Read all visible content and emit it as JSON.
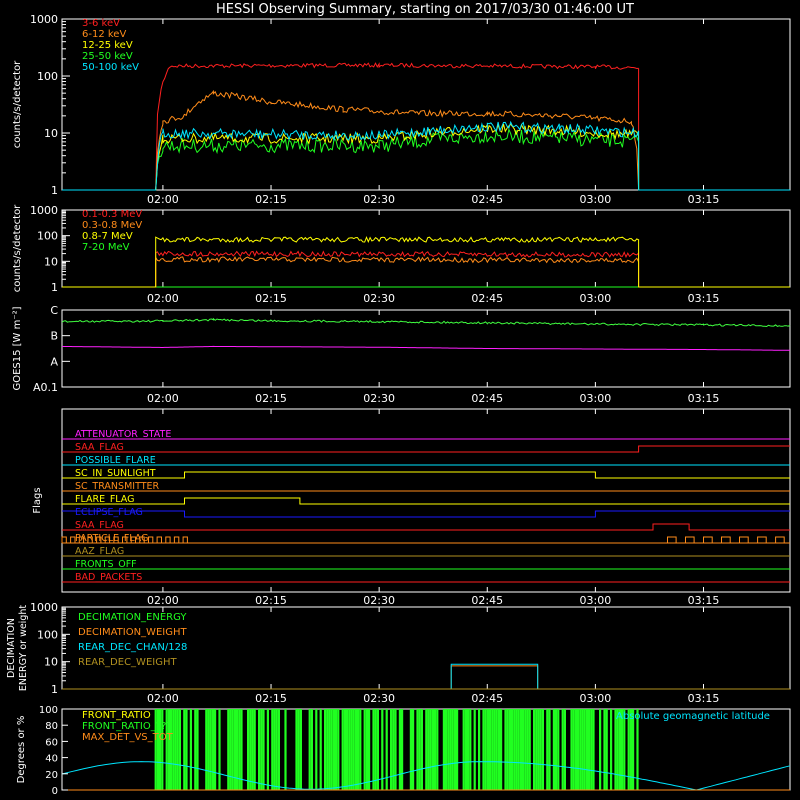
{
  "colors": {
    "bg": "#000000",
    "axis": "#ffffff",
    "red": "#ff2020",
    "orange": "#ff8c1a",
    "yellow": "#ffff00",
    "green": "#20ff20",
    "cyan": "#00e5ff",
    "magenta": "#ff20ff",
    "blue": "#1a1aff",
    "olive": "#b09020",
    "goes_green": "#40ff40"
  },
  "chart_data": [
    {
      "id": "xray",
      "type": "line",
      "title": "HESSI Observing Summary, starting on 2017/03/30 01:46:00 UT",
      "ylabel": "counts/s/detector",
      "yscale": "log",
      "ylim": [
        1,
        1000
      ],
      "ytick_labels": [
        "1",
        "10",
        "100",
        "1000"
      ],
      "ytick_values": [
        1,
        10,
        100,
        1000
      ],
      "xlim": [
        "01:46",
        "03:27"
      ],
      "xtick_labels": [
        "02:00",
        "02:15",
        "02:30",
        "02:45",
        "03:00",
        "03:15"
      ],
      "xtick_values": [
        "02:00",
        "02:15",
        "02:30",
        "02:45",
        "03:00",
        "03:15"
      ],
      "legend_position": "top-left",
      "series": [
        {
          "name": "3-6 keV",
          "color": "red",
          "x": [
            "01:46",
            "01:59",
            "02:01",
            "02:30",
            "03:00",
            "03:06",
            "03:06",
            "03:27"
          ],
          "y": [
            1,
            1,
            150,
            155,
            145,
            140,
            1,
            1
          ]
        },
        {
          "name": "6-12 keV",
          "color": "orange",
          "x": [
            "01:46",
            "01:59",
            "02:00",
            "02:03",
            "02:07",
            "02:15",
            "02:25",
            "02:35",
            "02:45",
            "02:55",
            "03:05",
            "03:06",
            "03:27"
          ],
          "y": [
            1,
            1,
            16,
            20,
            50,
            35,
            26,
            22,
            22,
            20,
            16,
            1,
            1
          ]
        },
        {
          "name": "12-25 keV",
          "color": "yellow",
          "x": [
            "01:46",
            "01:59",
            "02:00",
            "02:30",
            "02:45",
            "02:55",
            "03:06",
            "03:06",
            "03:27"
          ],
          "y": [
            1,
            1,
            8,
            8,
            12,
            11,
            9,
            1,
            1
          ]
        },
        {
          "name": "25-50 keV",
          "color": "green",
          "x": [
            "01:46",
            "01:59",
            "02:00",
            "02:30",
            "02:45",
            "02:55",
            "03:06",
            "03:06",
            "03:27"
          ],
          "y": [
            1,
            1,
            6,
            6,
            9,
            8,
            7,
            1,
            1
          ]
        },
        {
          "name": "50-100 keV",
          "color": "cyan",
          "x": [
            "01:46",
            "01:59",
            "02:00",
            "02:30",
            "02:45",
            "02:55",
            "03:06",
            "03:06",
            "03:27"
          ],
          "y": [
            1,
            1,
            10,
            9,
            13,
            12,
            10,
            1,
            1
          ]
        }
      ]
    },
    {
      "id": "gamma",
      "type": "line",
      "ylabel": "counts/s/detector",
      "yscale": "log",
      "ylim": [
        1,
        1000
      ],
      "ytick_labels": [
        "1",
        "10",
        "100",
        "1000"
      ],
      "ytick_values": [
        1,
        10,
        100,
        1000
      ],
      "xlim": [
        "01:46",
        "03:27"
      ],
      "xtick_labels": [
        "02:00",
        "02:15",
        "02:30",
        "02:45",
        "03:00",
        "03:15"
      ],
      "xtick_values": [
        "02:00",
        "02:15",
        "02:30",
        "02:45",
        "03:00",
        "03:15"
      ],
      "legend_position": "top-left",
      "series": [
        {
          "name": "0.1-0.3 MeV",
          "color": "red",
          "x": [
            "01:46",
            "01:59",
            "01:59",
            "03:06",
            "03:06",
            "03:27"
          ],
          "y": [
            1,
            1,
            20,
            18,
            1,
            1
          ]
        },
        {
          "name": "0.3-0.8 MeV",
          "color": "orange",
          "x": [
            "01:46",
            "01:59",
            "01:59",
            "03:06",
            "03:06",
            "03:27"
          ],
          "y": [
            1,
            1,
            12,
            11,
            1,
            1
          ]
        },
        {
          "name": "0.8-7 MeV",
          "color": "yellow",
          "x": [
            "01:46",
            "01:59",
            "01:59",
            "03:06",
            "03:06",
            "03:27"
          ],
          "y": [
            1,
            1,
            70,
            70,
            1,
            1
          ]
        },
        {
          "name": "7-20 MeV",
          "color": "green",
          "x": [
            "01:46",
            "03:27"
          ],
          "y": [
            1,
            1
          ]
        }
      ]
    },
    {
      "id": "goes",
      "type": "line",
      "ylabel": "GOES15 [W m⁻²]",
      "yscale": "category",
      "ytick_labels": [
        "A0.1",
        "A",
        "B",
        "C"
      ],
      "xlim": [
        "01:46",
        "03:27"
      ],
      "xtick_labels": [
        "02:00",
        "02:15",
        "02:30",
        "02:45",
        "03:00",
        "03:15"
      ],
      "xtick_values": [
        "02:00",
        "02:15",
        "02:30",
        "02:45",
        "03:00",
        "03:15"
      ],
      "series": [
        {
          "name": "",
          "color": "goes_green",
          "x": [
            "01:46",
            "02:00",
            "02:07",
            "02:15",
            "02:30",
            "02:45",
            "03:00",
            "03:15",
            "03:27"
          ],
          "y": [
            1.55,
            1.57,
            1.62,
            1.58,
            1.55,
            1.5,
            1.45,
            1.42,
            1.38
          ]
        },
        {
          "name": "",
          "color": "magenta",
          "x": [
            "01:46",
            "02:00",
            "02:07",
            "02:30",
            "02:45",
            "03:00",
            "03:15",
            "03:27"
          ],
          "y": [
            0.58,
            0.54,
            0.58,
            0.55,
            0.5,
            0.48,
            0.46,
            0.43
          ]
        }
      ]
    },
    {
      "id": "flags",
      "type": "line",
      "ylabel": "Flags",
      "xlim": [
        "01:46",
        "03:27"
      ],
      "xtick_labels": [
        "02:00",
        "02:15",
        "02:30",
        "02:45",
        "03:00",
        "03:15"
      ],
      "xtick_values": [
        "02:00",
        "02:15",
        "02:30",
        "02:45",
        "03:00",
        "03:15"
      ],
      "series": [
        {
          "name": "ATTENUATOR_STATE",
          "color": "magenta",
          "x": [
            "01:46",
            "03:27"
          ],
          "y": [
            0,
            0
          ]
        },
        {
          "name": "SAA_FLAG",
          "color": "red",
          "x": [
            "01:46",
            "03:06",
            "03:06",
            "03:27"
          ],
          "y": [
            0,
            0,
            1,
            1
          ]
        },
        {
          "name": "POSSIBLE_FLARE",
          "color": "cyan",
          "x": [
            "01:46",
            "03:27"
          ],
          "y": [
            0,
            0
          ]
        },
        {
          "name": "SC_IN_SUNLIGHT",
          "color": "yellow",
          "x": [
            "01:46",
            "02:03",
            "02:03",
            "03:00",
            "03:00",
            "03:27"
          ],
          "y": [
            0,
            0,
            1,
            1,
            0,
            0
          ]
        },
        {
          "name": "SC_TRANSMITTER",
          "color": "orange",
          "x": [
            "01:46",
            "03:27"
          ],
          "y": [
            0,
            0
          ]
        },
        {
          "name": "FLARE_FLAG",
          "color": "yellow",
          "x": [
            "01:46",
            "02:03",
            "02:03",
            "02:19",
            "02:19",
            "03:27"
          ],
          "y": [
            0,
            0,
            1,
            1,
            0,
            0
          ]
        },
        {
          "name": "ECLIPSE_FLAG",
          "color": "blue",
          "x": [
            "01:46",
            "02:03",
            "02:03",
            "03:00",
            "03:00",
            "03:27"
          ],
          "y": [
            1,
            1,
            0,
            0,
            1,
            1
          ]
        },
        {
          "name": "SAA_FLAG",
          "color": "red",
          "x": [
            "01:46",
            "03:08",
            "03:08",
            "03:13",
            "03:13",
            "03:27"
          ],
          "y": [
            0,
            0,
            1,
            1,
            0,
            0
          ]
        },
        {
          "name": "PARTICLE_FLAG",
          "color": "orange",
          "x": [
            "01:46",
            "03:27"
          ],
          "y": [
            0,
            0
          ]
        },
        {
          "name": "AAZ_FLAG",
          "color": "olive",
          "x": [
            "01:46",
            "03:27"
          ],
          "y": [
            0,
            0
          ]
        },
        {
          "name": "FRONTS_OFF",
          "color": "green",
          "x": [
            "01:46",
            "03:27"
          ],
          "y": [
            0,
            0
          ]
        },
        {
          "name": "BAD_PACKETS",
          "color": "red",
          "x": [
            "01:46",
            "03:27"
          ],
          "y": [
            0,
            0
          ]
        }
      ]
    },
    {
      "id": "decimation",
      "type": "line",
      "ylabel": "DECIMATION ENERGY or weight",
      "yscale": "log",
      "ylim": [
        1,
        1000
      ],
      "ytick_labels": [
        "1",
        "10",
        "100",
        "1000"
      ],
      "ytick_values": [
        1,
        10,
        100,
        1000
      ],
      "xlim": [
        "01:46",
        "03:27"
      ],
      "xtick_labels": [
        "02:00",
        "02:15",
        "02:30",
        "02:45",
        "03:00",
        "03:15"
      ],
      "xtick_values": [
        "02:00",
        "02:15",
        "02:30",
        "02:45",
        "03:00",
        "03:15"
      ],
      "legend_position": "top-left",
      "series": [
        {
          "name": "DECIMATION_ENERGY",
          "color": "green",
          "x": [
            "01:46",
            "03:27"
          ],
          "y": [
            1,
            1
          ]
        },
        {
          "name": "DECIMATION_WEIGHT",
          "color": "orange",
          "x": [
            "01:46",
            "02:40",
            "02:40",
            "02:52",
            "02:52",
            "03:27"
          ],
          "y": [
            1,
            1,
            7,
            7,
            1,
            1
          ]
        },
        {
          "name": "REAR_DEC_CHAN/128",
          "color": "cyan",
          "x": [
            "01:46",
            "02:40",
            "02:40",
            "02:52",
            "02:52",
            "03:27"
          ],
          "y": [
            1,
            1,
            8,
            8,
            1,
            1
          ]
        },
        {
          "name": "REAR_DEC_WEIGHT",
          "color": "olive",
          "x": [
            "01:46",
            "03:27"
          ],
          "y": [
            1,
            1
          ]
        }
      ]
    },
    {
      "id": "ratio",
      "type": "line",
      "ylabel": "Degrees or %",
      "ylim": [
        0,
        100
      ],
      "ytick_labels": [
        "0",
        "20",
        "40",
        "60",
        "80",
        "100"
      ],
      "ytick_values": [
        0,
        20,
        40,
        60,
        80,
        100
      ],
      "xlim": [
        "01:46",
        "03:27"
      ],
      "legend_position": "top-left",
      "annotation": "Absolute geomagnetic latitude",
      "series": [
        {
          "name": "FRONT_RATIO",
          "color": "yellow",
          "x": [
            "01:46",
            "03:27"
          ],
          "y": [
            0,
            0
          ]
        },
        {
          "name": "FRONT_RATIO_???",
          "color": "green",
          "x": [
            "01:59",
            "03:06"
          ],
          "y": [
            100,
            100
          ]
        },
        {
          "name": "MAX_DET_VS_TOT",
          "color": "orange",
          "x": [
            "01:46",
            "03:27"
          ],
          "y": [
            0,
            0
          ]
        },
        {
          "name": "Absolute geomagnetic latitude",
          "color": "cyan",
          "x": [
            "01:46",
            "01:57",
            "02:20",
            "02:44",
            "03:07",
            "03:14",
            "03:27"
          ],
          "y": [
            18,
            33,
            2,
            35,
            18,
            0,
            30
          ]
        }
      ]
    }
  ]
}
